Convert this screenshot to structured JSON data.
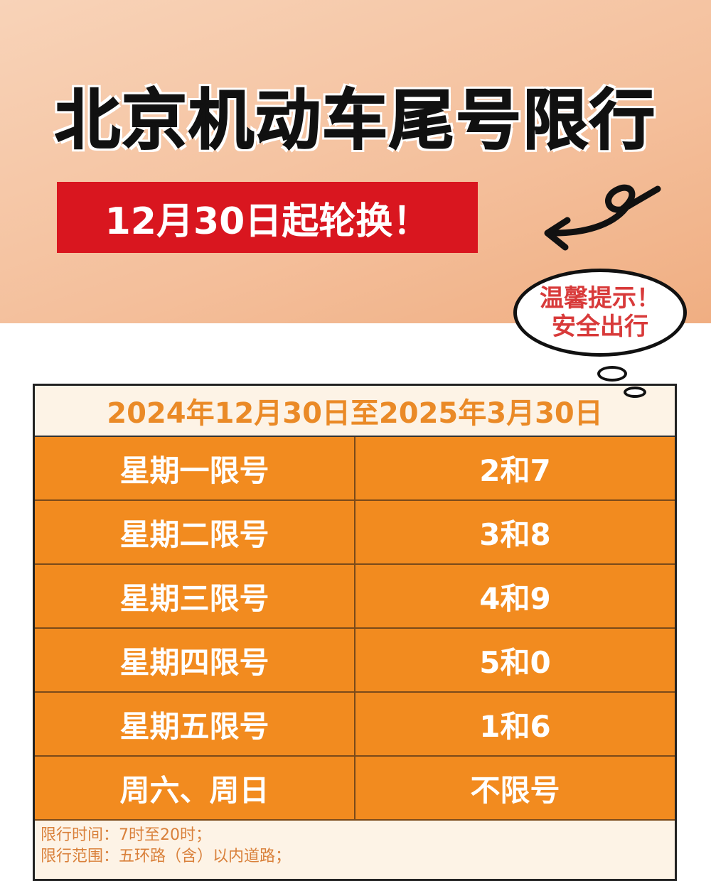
{
  "title": "北京机动车尾号限行",
  "subtitle": "12月30日起轮换！",
  "tip": {
    "line1": "温馨提示！",
    "line2": "安全出行"
  },
  "colors": {
    "header_bg": "#f4bf9b",
    "red": "#d9161f",
    "orange": "#f28b1f",
    "date_text": "#ea8a27"
  },
  "table": {
    "period": "2024年12月30日至2025年3月30日",
    "rows": [
      {
        "day": "星期一限号",
        "numbers": "2和7"
      },
      {
        "day": "星期二限号",
        "numbers": "3和8"
      },
      {
        "day": "星期三限号",
        "numbers": "4和9"
      },
      {
        "day": "星期四限号",
        "numbers": "5和0"
      },
      {
        "day": "星期五限号",
        "numbers": "1和6"
      },
      {
        "day": "周六、周日",
        "numbers": "不限号"
      }
    ],
    "notes": [
      "限行时间：7时至20时；",
      "限行范围：五环路（含）以内道路；"
    ]
  }
}
